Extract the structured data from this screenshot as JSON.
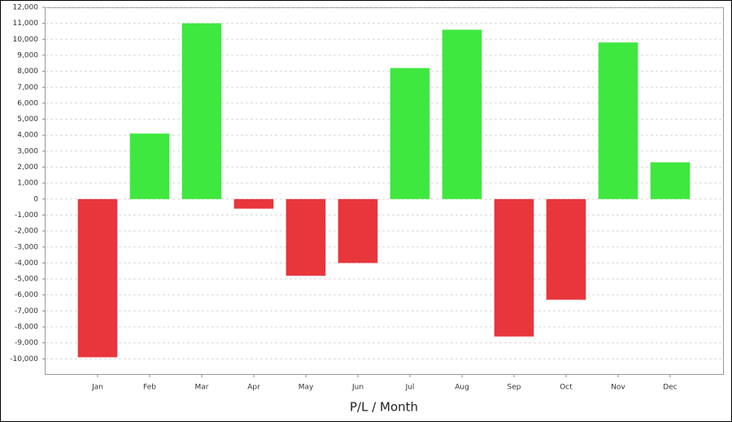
{
  "chart_data": {
    "type": "bar",
    "x_label": "P/L / Month",
    "categories": [
      "Jan",
      "Feb",
      "Mar",
      "Apr",
      "May",
      "Jun",
      "Jul",
      "Aug",
      "Sep",
      "Oct",
      "Nov",
      "Dec"
    ],
    "values": [
      -9900,
      4100,
      11000,
      -600,
      -4800,
      -4000,
      8200,
      10600,
      -8600,
      -6300,
      9800,
      2300
    ],
    "positive_color": "#3fe83f",
    "negative_color": "#e8363c",
    "ylim": [
      -11000,
      12000
    ],
    "yticks": [
      {
        "value": -10000,
        "label": "-10,000"
      },
      {
        "value": -9000,
        "label": "-9,000"
      },
      {
        "value": -8000,
        "label": "-8,000"
      },
      {
        "value": -7000,
        "label": "-7,000"
      },
      {
        "value": -6000,
        "label": "-6,000"
      },
      {
        "value": -5000,
        "label": "-5,000"
      },
      {
        "value": -4000,
        "label": "-4,000"
      },
      {
        "value": -3000,
        "label": "-3,000"
      },
      {
        "value": -2000,
        "label": "-2,000"
      },
      {
        "value": -1000,
        "label": "-1,000"
      },
      0,
      {
        "value": 1000,
        "label": "1,000"
      },
      {
        "value": 2000,
        "label": "2,000"
      },
      {
        "value": 3000,
        "label": "3,000"
      },
      {
        "value": 4000,
        "label": "4,000"
      },
      {
        "value": 5000,
        "label": "5,000"
      },
      {
        "value": 6000,
        "label": "6,000"
      },
      {
        "value": 7000,
        "label": "7,000"
      },
      {
        "value": 8000,
        "label": "8,000"
      },
      {
        "value": 9000,
        "label": "9,000"
      },
      {
        "value": 10000,
        "label": "10,000"
      },
      {
        "value": 11000,
        "label": "11,000"
      },
      {
        "value": 12000,
        "label": "12,000"
      }
    ],
    "grid": true
  }
}
